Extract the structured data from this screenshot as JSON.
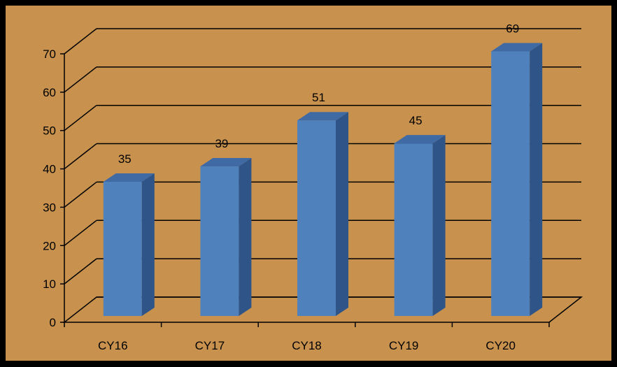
{
  "chart_data": {
    "type": "bar",
    "categories": [
      "CY16",
      "CY17",
      "CY18",
      "CY19",
      "CY20"
    ],
    "values": [
      35,
      39,
      51,
      45,
      69
    ],
    "data_labels": [
      "35",
      "39",
      "51",
      "45",
      "69"
    ],
    "yticks": [
      "0",
      "10",
      "20",
      "30",
      "40",
      "50",
      "60",
      "70"
    ],
    "ylim": [
      0,
      70
    ],
    "title": "",
    "xlabel": "",
    "ylabel": "",
    "grid": true,
    "legend": "none",
    "style": "3d-column",
    "colors": {
      "plot_background": "#C8924E",
      "page_background": "#000000",
      "bar_front": "#4F81BD",
      "bar_side": "#2F5487",
      "bar_top": "#3F6AA4",
      "gridline": "#000000"
    }
  }
}
